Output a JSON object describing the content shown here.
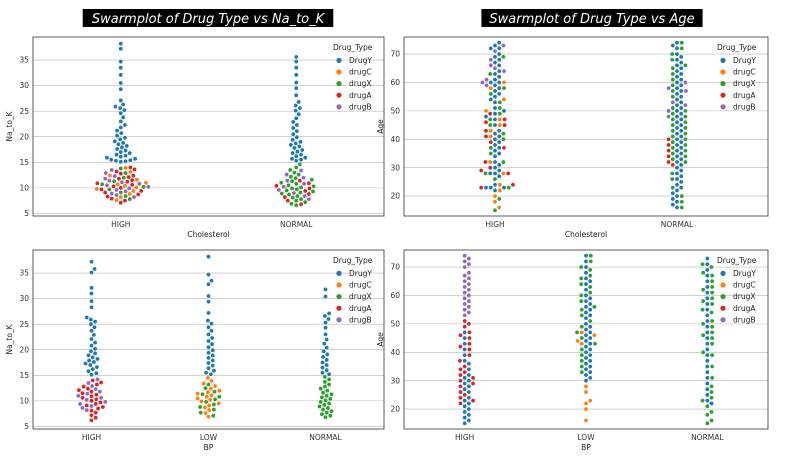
{
  "figure": {
    "palette": {
      "DrugY": "#1f77b4",
      "drugC": "#ff7f0e",
      "drugX": "#2ca02c",
      "drugA": "#d62728",
      "drugB": "#9467bd"
    },
    "legend_title": "Drug_Type",
    "legend_order": [
      "DrugY",
      "drugC",
      "drugX",
      "drugA",
      "drugB"
    ]
  },
  "chart_data": [
    {
      "id": "p1",
      "type": "scatter",
      "title": "Swarmplot of Drug Type vs Na_to_K",
      "xlabel": "Cholesterol",
      "ylabel": "Na_to_K",
      "categories": [
        "HIGH",
        "NORMAL"
      ],
      "ylim": [
        4.5,
        39.5
      ],
      "yticks": [
        5,
        10,
        15,
        20,
        25,
        30,
        35
      ],
      "grid": true,
      "legend": "top-right",
      "series": [
        {
          "name": "DrugY",
          "values": [
            [
              38.2,
              37.2,
              34.7,
              33.5,
              32.1,
              30.5,
              29.3,
              27.1,
              26.3,
              25.9,
              25.6,
              25.2,
              24.6,
              23.8,
              23.0,
              22.3,
              21.8,
              21.2,
              20.7,
              20.2,
              19.8,
              19.5,
              19.1,
              18.8,
              18.5,
              18.2,
              17.9,
              17.6,
              17.3,
              17.0,
              16.8,
              16.5,
              16.3,
              16.1,
              15.9,
              15.7,
              15.5,
              15.4,
              15.3,
              15.2,
              15.1
            ],
            [
              35.6,
              34.7,
              33.5,
              32.1,
              30.6,
              29.5,
              28.1,
              26.8,
              26.1,
              25.6,
              25.1,
              24.4,
              23.6,
              22.9,
              22.3,
              21.7,
              21.1,
              20.5,
              19.9,
              19.4,
              19.0,
              18.7,
              18.4,
              18.1,
              17.8,
              17.4,
              17.1,
              16.8,
              16.5,
              16.2,
              15.9,
              15.7,
              15.5,
              15.3
            ]
          ]
        },
        {
          "name": "drugC",
          "values": [
            [
              13.9,
              13.1,
              12.4,
              11.6,
              11.0,
              10.7,
              10.4,
              10.1,
              9.8,
              9.4,
              8.8,
              8.2,
              7.6
            ],
            []
          ]
        },
        {
          "name": "drugX",
          "values": [
            [
              13.8,
              12.9,
              12.0,
              11.3,
              10.7,
              10.2,
              9.7,
              9.1,
              8.4,
              7.8
            ],
            [
              14.6,
              14.0,
              13.5,
              13.0,
              12.6,
              12.2,
              11.9,
              11.6,
              11.3,
              11.0,
              10.8,
              10.5,
              10.3,
              10.1,
              9.9,
              9.7,
              9.5,
              9.3,
              9.1,
              8.9,
              8.7,
              8.4,
              8.1,
              7.8,
              7.5,
              7.2,
              6.9,
              6.6
            ]
          ]
        },
        {
          "name": "drugA",
          "values": [
            [
              14.0,
              13.6,
              13.2,
              12.8,
              12.4,
              12.1,
              11.8,
              11.5,
              11.2,
              10.9,
              10.6,
              10.3,
              10.0,
              9.7,
              9.4,
              9.1,
              8.7,
              8.3,
              7.9,
              7.5,
              7.1
            ],
            [
              11.4,
              10.9,
              10.4,
              9.9,
              9.4,
              8.8,
              8.2,
              7.5,
              6.8
            ]
          ]
        },
        {
          "name": "drugB",
          "values": [
            [
              13.5,
              12.9,
              12.3,
              11.8,
              11.4,
              11.1,
              10.8,
              10.5,
              10.2,
              9.9,
              9.6,
              9.3,
              8.9,
              8.6,
              8.2
            ],
            [
              13.4,
              12.6,
              12.0,
              11.4,
              10.8,
              10.2,
              9.6,
              9.0,
              8.4,
              7.8
            ]
          ]
        }
      ]
    },
    {
      "id": "p2",
      "type": "scatter",
      "title": "Swarmplot of Drug Type vs Age",
      "xlabel": "Cholesterol",
      "ylabel": "Age",
      "categories": [
        "HIGH",
        "NORMAL"
      ],
      "ylim": [
        13,
        76
      ],
      "yticks": [
        20,
        30,
        40,
        50,
        60,
        70
      ],
      "grid": true,
      "legend": "top-right",
      "series": [
        {
          "name": "DrugY",
          "values": [
            [
              74,
              73,
              72,
              72,
              70,
              69,
              68,
              67,
              66,
              64,
              63,
              62,
              61,
              60,
              60,
              59,
              58,
              57,
              56,
              55,
              54,
              53,
              51,
              50,
              49,
              48,
              47,
              45,
              43,
              42,
              41,
              40,
              39,
              38,
              37,
              36,
              35,
              34,
              32,
              31,
              30,
              29,
              28,
              28,
              27,
              24,
              23,
              23,
              23,
              22
            ],
            [
              74,
              73,
              72,
              70,
              69,
              68,
              67,
              66,
              65,
              64,
              63,
              62,
              61,
              60,
              59,
              58,
              57,
              56,
              55,
              54,
              53,
              52,
              51,
              50,
              49,
              48,
              47,
              46,
              45,
              44,
              43,
              42,
              41,
              40,
              39,
              38,
              37,
              36,
              35,
              34,
              33,
              32,
              31,
              30,
              29,
              28,
              27,
              26,
              25,
              24,
              23,
              22,
              21,
              20,
              19,
              18,
              17,
              16
            ]
          ]
        },
        {
          "name": "drugC",
          "values": [
            [
              60,
              58,
              54,
              50,
              47,
              45,
              43,
              41,
              32,
              28,
              24,
              22,
              20,
              18,
              16
            ],
            []
          ]
        },
        {
          "name": "drugX",
          "values": [
            [
              69,
              63,
              58,
              56,
              53,
              51,
              49,
              47,
              45,
              42,
              40,
              37,
              35,
              32,
              28,
              26,
              23,
              19,
              15
            ],
            [
              74,
              72,
              70,
              68,
              66,
              65,
              63,
              61,
              59,
              57,
              55,
              51,
              50,
              49,
              48,
              47,
              46,
              45,
              44,
              43,
              42,
              41,
              40,
              39,
              38,
              37,
              36,
              35,
              34,
              33,
              32,
              28,
              26,
              23,
              20,
              18,
              16
            ]
          ]
        },
        {
          "name": "drugA",
          "values": [
            [
              49,
              47,
              46,
              45,
              43,
              41,
              39,
              37,
              32,
              30,
              29,
              28,
              24,
              23
            ],
            [
              40,
              38,
              36,
              34,
              32,
              31
            ]
          ]
        },
        {
          "name": "drugB",
          "values": [
            [
              73,
              71,
              68,
              66,
              65,
              64,
              61,
              60,
              59
            ],
            [
              60,
              58,
              57,
              53,
              52,
              50,
              48
            ]
          ]
        }
      ]
    },
    {
      "id": "p3",
      "type": "scatter",
      "title": "",
      "xlabel": "BP",
      "ylabel": "Na_to_K",
      "categories": [
        "HIGH",
        "LOW",
        "NORMAL"
      ],
      "ylim": [
        4.5,
        39.5
      ],
      "yticks": [
        5,
        10,
        15,
        20,
        25,
        30,
        35
      ],
      "grid": true,
      "legend": "top-right",
      "series": [
        {
          "name": "DrugY",
          "values": [
            [
              37.2,
              35.8,
              35.1,
              32.1,
              31.0,
              29.5,
              28.3,
              26.3,
              25.9,
              25.5,
              25.0,
              24.4,
              23.7,
              22.9,
              22.1,
              21.4,
              20.8,
              20.2,
              19.7,
              19.3,
              18.9,
              18.5,
              18.2,
              17.9,
              17.6,
              17.3,
              17.0,
              16.6,
              16.2,
              15.8,
              15.4,
              15.1
            ],
            [
              38.2,
              34.7,
              33.5,
              32.8,
              30.5,
              29.4,
              27.2,
              25.7,
              25.1,
              24.4,
              23.7,
              23.0,
              22.3,
              21.7,
              21.1,
              20.5,
              19.9,
              19.4,
              18.9,
              18.4,
              17.9,
              17.4,
              16.9,
              16.4,
              15.9,
              15.5,
              15.2
            ],
            [
              31.8,
              30.4,
              27.1,
              26.6,
              26.0,
              25.3,
              24.3,
              23.0,
              22.0,
              21.2,
              20.4,
              19.7,
              19.1,
              18.6,
              18.0,
              17.5,
              17.0,
              16.5,
              16.0,
              15.5,
              15.2
            ]
          ]
        },
        {
          "name": "drugC",
          "values": [
            [],
            [
              14.5,
              13.9,
              13.4,
              12.9,
              12.4,
              12.0,
              11.7,
              11.4,
              11.1,
              10.8,
              10.5,
              10.2,
              9.9,
              9.5,
              9.1,
              8.7,
              8.2,
              7.6,
              6.9
            ],
            []
          ]
        },
        {
          "name": "drugX",
          "values": [
            [],
            [
              13.2,
              12.5,
              11.8,
              11.3,
              10.8,
              10.3,
              9.8,
              9.3,
              8.8,
              8.3,
              7.7,
              7.1
            ],
            [
              14.7,
              14.2,
              13.7,
              13.2,
              12.8,
              12.4,
              12.0,
              11.6,
              11.3,
              11.0,
              10.7,
              10.4,
              10.1,
              9.8,
              9.5,
              9.2,
              8.9,
              8.6,
              8.3,
              8.0,
              7.7,
              7.4,
              7.1,
              6.8
            ]
          ]
        },
        {
          "name": "drugA",
          "values": [
            [
              14.0,
              13.6,
              13.2,
              12.8,
              12.4,
              12.1,
              11.8,
              11.5,
              11.2,
              10.9,
              10.6,
              10.3,
              10.0,
              9.7,
              9.4,
              9.1,
              8.8,
              8.5,
              8.1,
              7.7,
              7.2,
              6.7,
              6.2
            ],
            [],
            []
          ]
        },
        {
          "name": "drugB",
          "values": [
            [
              14.2,
              13.5,
              12.9,
              12.3,
              11.8,
              11.4,
              11.0,
              10.6,
              10.2,
              9.8,
              9.4,
              9.0,
              8.6,
              8.2
            ],
            [],
            []
          ]
        }
      ]
    },
    {
      "id": "p4",
      "type": "scatter",
      "title": "",
      "xlabel": "BP",
      "ylabel": "Age",
      "categories": [
        "HIGH",
        "LOW",
        "NORMAL"
      ],
      "ylim": [
        13,
        76
      ],
      "yticks": [
        20,
        30,
        40,
        50,
        60,
        70
      ],
      "grid": true,
      "legend": "top-right",
      "series": [
        {
          "name": "DrugY",
          "values": [
            [
              47,
              45,
              43,
              41,
              39,
              37,
              36,
              34,
              32,
              31,
              30,
              29,
              28,
              27,
              26,
              24,
              23,
              22,
              21,
              20,
              19,
              18,
              17,
              16,
              15
            ],
            [
              74,
              72,
              70,
              68,
              66,
              65,
              64,
              62,
              60,
              59,
              58,
              57,
              56,
              55,
              54,
              53,
              52,
              50,
              49,
              48,
              47,
              46,
              45,
              44,
              43,
              42,
              41,
              40,
              39,
              38,
              37,
              36,
              35,
              34,
              33,
              32,
              31,
              30
            ],
            [
              73,
              71,
              69,
              67,
              65,
              63,
              61,
              59,
              57,
              55,
              53,
              51,
              49,
              47,
              45,
              43,
              41,
              39,
              37,
              35,
              33,
              31,
              29,
              27,
              25,
              23,
              22
            ]
          ]
        },
        {
          "name": "drugC",
          "values": [
            [],
            [
              47,
              46,
              44,
              43,
              28,
              26,
              23,
              22,
              20,
              16
            ],
            []
          ]
        },
        {
          "name": "drugX",
          "values": [
            [],
            [
              74,
              72,
              70,
              69,
              67,
              66,
              64,
              63,
              61,
              60,
              58,
              56,
              55,
              53,
              51,
              49,
              47,
              45,
              43,
              41,
              39,
              37,
              35,
              33
            ],
            [
              71,
              70,
              68,
              67,
              65,
              63,
              62,
              61,
              59,
              58,
              57,
              55,
              54,
              51,
              50,
              49,
              47,
              46,
              45,
              43,
              40,
              39,
              35,
              31,
              28,
              26,
              24,
              23,
              21,
              19,
              18,
              16,
              15
            ]
          ]
        },
        {
          "name": "drugA",
          "values": [
            [
              51,
              50,
              49,
              47,
              46,
              45,
              43,
              42,
              41,
              39,
              37,
              35,
              34,
              33,
              32,
              31,
              30,
              29,
              28,
              26,
              25,
              24,
              23,
              22
            ],
            [],
            []
          ]
        },
        {
          "name": "drugB",
          "values": [
            [
              74,
              73,
              72,
              71,
              70,
              68,
              67,
              66,
              65,
              64,
              63,
              62,
              61,
              60,
              59,
              58,
              57,
              56,
              55,
              54,
              53
            ],
            [],
            []
          ]
        }
      ]
    }
  ]
}
